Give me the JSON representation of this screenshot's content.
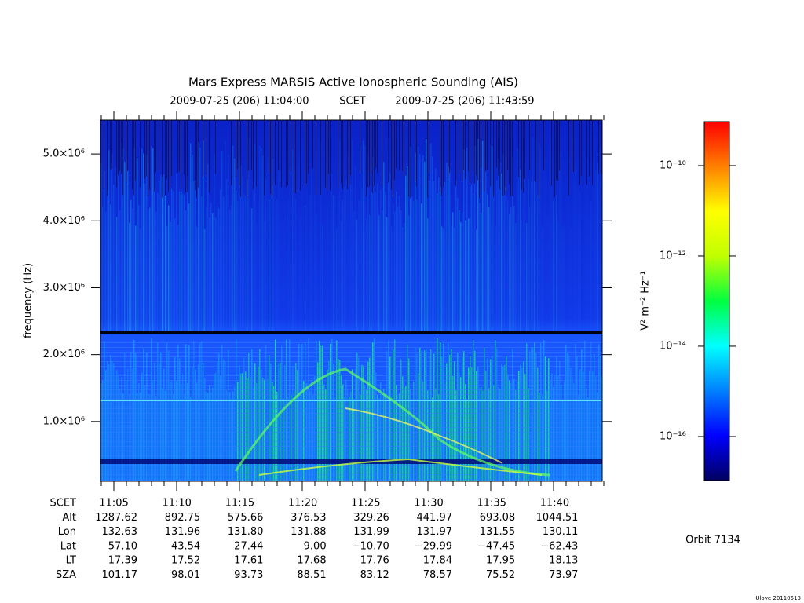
{
  "chart_data": {
    "type": "spectrogram",
    "title": "Mars Express MARSIS Active Ionospheric Sounding (AIS)",
    "time_start": "2009-07-25 (206) 11:04:00",
    "time_label": "SCET",
    "time_end": "2009-07-25 (206) 11:43:59",
    "y_label": "frequency (Hz)",
    "ylim": [
      106000,
      5506000
    ],
    "yticks": [
      {
        "value": 1000000,
        "label": "1.0×10⁶"
      },
      {
        "value": 2000000,
        "label": "2.0×10⁶"
      },
      {
        "value": 3000000,
        "label": "3.0×10⁶"
      },
      {
        "value": 4000000,
        "label": "4.0×10⁶"
      },
      {
        "value": 5000000,
        "label": "5.0×10⁶"
      }
    ],
    "colorbar": {
      "label": "V² m⁻² Hz⁻¹",
      "log": true,
      "clim": [
        1.06e-17,
        9.4e-10
      ],
      "ticks": [
        {
          "value": 1e-10,
          "label": "10⁻¹⁰"
        },
        {
          "value": 1e-12,
          "label": "10⁻¹²"
        },
        {
          "value": 1e-14,
          "label": "10⁻¹⁴"
        },
        {
          "value": 1e-16,
          "label": "10⁻¹⁶"
        }
      ],
      "colormap": [
        "#000060",
        "#0000ff",
        "#0080ff",
        "#00ffff",
        "#00ff40",
        "#c0ff00",
        "#ffff00",
        "#ff8000",
        "#ff0000"
      ]
    },
    "ephemeris": {
      "row_labels": [
        "SCET",
        "Alt",
        "Lon",
        "Lat",
        "LT",
        "SZA"
      ],
      "rows": [
        [
          "11:05",
          "11:10",
          "11:15",
          "11:20",
          "11:25",
          "11:30",
          "11:35",
          "11:40"
        ],
        [
          "1287.62",
          "892.75",
          "575.66",
          "376.53",
          "329.26",
          "441.97",
          "693.08",
          "1044.51"
        ],
        [
          "132.63",
          "131.96",
          "131.80",
          "131.88",
          "131.99",
          "131.97",
          "131.55",
          "130.11"
        ],
        [
          "57.10",
          "43.54",
          "27.44",
          "9.00",
          "−10.70",
          "−29.99",
          "−47.45",
          "−62.43"
        ],
        [
          "17.39",
          "17.52",
          "17.61",
          "17.68",
          "17.76",
          "17.84",
          "17.95",
          "18.13"
        ],
        [
          "101.17",
          "98.01",
          "93.73",
          "88.51",
          "83.12",
          "78.57",
          "75.52",
          "73.97"
        ]
      ]
    },
    "orbit": "Orbit 7134",
    "credit": "Ulove 20110513"
  }
}
